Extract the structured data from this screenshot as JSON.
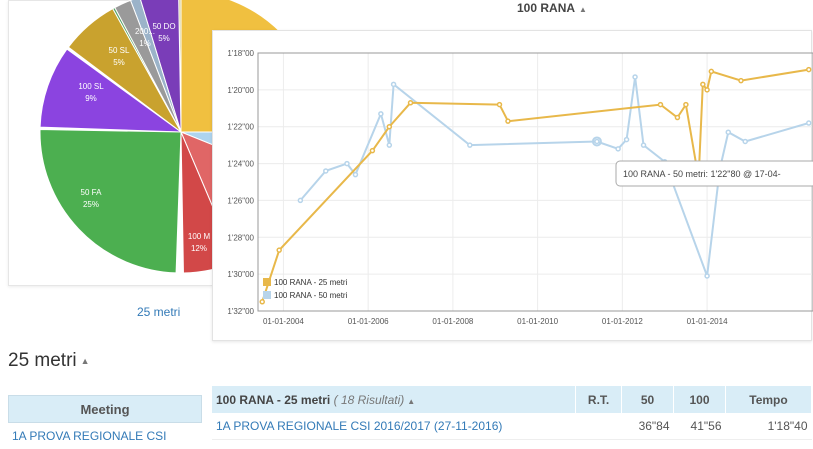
{
  "pie": {
    "caption": "25 metri",
    "slices": [
      {
        "label": "50 DO",
        "pct": "5%",
        "color": "#7a3db8"
      },
      {
        "label": "200...",
        "pct": "1%",
        "color": "#9a9a9a"
      },
      {
        "label": "50 SL",
        "pct": "5%",
        "color": "#c9a22e"
      },
      {
        "label": "100 SL",
        "pct": "9%",
        "color": "#8b44e0"
      },
      {
        "label": "50 FA",
        "pct": "25%",
        "color": "#4caf50"
      },
      {
        "label": "100 M",
        "pct": "12%",
        "color": "#d24848"
      }
    ]
  },
  "section_title": "25 metri",
  "meeting_table": {
    "header": "Meeting",
    "rows": [
      "1A PROVA REGIONALE CSI"
    ]
  },
  "chart_data": {
    "type": "line",
    "title": "100 RANA",
    "xlabel": "",
    "ylabel": "",
    "y_ticks": [
      "1'18\"00",
      "1'20\"00",
      "1'22\"00",
      "1'24\"00",
      "1'26\"00",
      "1'28\"00",
      "1'30\"00",
      "1'32\"00"
    ],
    "x_ticks": [
      "01-01-2004",
      "01-01-2006",
      "01-01-2008",
      "01-01-2010",
      "01-01-2012",
      "01-01-2014"
    ],
    "ylim": [
      78,
      92
    ],
    "xlim": [
      2003.4,
      2016.5
    ],
    "y_inverted": true,
    "legend": "bottom-left",
    "tooltip": "100 RANA - 50 metri: 1'22\"80 @ 17-04-",
    "series": [
      {
        "name": "100 RANA - 25 metri",
        "color": "#e8b84a",
        "points": [
          [
            2003.5,
            91.5
          ],
          [
            2003.9,
            88.7
          ],
          [
            2006.1,
            83.3
          ],
          [
            2006.5,
            82.0
          ],
          [
            2007.0,
            80.7
          ],
          [
            2009.1,
            80.8
          ],
          [
            2009.3,
            81.7
          ],
          [
            2012.9,
            80.8
          ],
          [
            2013.3,
            81.5
          ],
          [
            2013.5,
            80.8
          ],
          [
            2013.8,
            84.8
          ],
          [
            2013.9,
            79.7
          ],
          [
            2014.0,
            80.0
          ],
          [
            2014.1,
            79.0
          ],
          [
            2014.8,
            79.5
          ],
          [
            2016.4,
            78.9
          ]
        ]
      },
      {
        "name": "100 RANA - 50 metri",
        "color": "#b7d4ea",
        "points": [
          [
            2004.4,
            86.0
          ],
          [
            2005.0,
            84.4
          ],
          [
            2005.5,
            84.0
          ],
          [
            2005.7,
            84.6
          ],
          [
            2006.3,
            81.3
          ],
          [
            2006.5,
            83.0
          ],
          [
            2006.6,
            79.7
          ],
          [
            2008.4,
            83.0
          ],
          [
            2011.4,
            82.8
          ],
          [
            2011.9,
            83.2
          ],
          [
            2012.1,
            82.7
          ],
          [
            2012.3,
            79.3
          ],
          [
            2012.5,
            83.0
          ],
          [
            2013.0,
            83.9
          ],
          [
            2014.0,
            90.1
          ],
          [
            2014.3,
            84.3
          ],
          [
            2014.5,
            82.3
          ],
          [
            2014.9,
            82.8
          ],
          [
            2016.4,
            81.8
          ]
        ]
      }
    ]
  },
  "results_table": {
    "title": "100 RANA - 25 metri",
    "count": "( 18 Risultati)",
    "columns": [
      "R.T.",
      "50",
      "100",
      "Tempo"
    ],
    "rows": [
      {
        "meeting": "1A PROVA REGIONALE CSI 2016/2017 (27-11-2016)",
        "rt": "",
        "s50": "36\"84",
        "s100": "41\"56",
        "tempo": "1'18\"40"
      }
    ]
  }
}
